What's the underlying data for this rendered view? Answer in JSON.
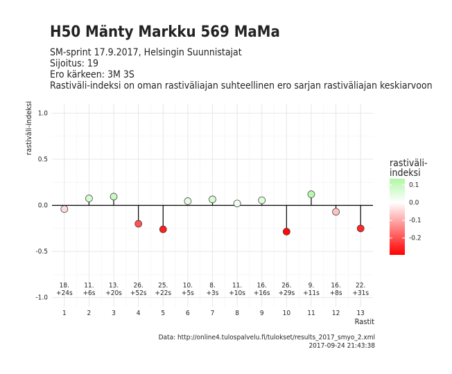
{
  "chart_data": {
    "type": "lollipop",
    "title": "H50 Mänty Markku 569 MaMa",
    "subtitle": [
      "SM-sprint 17.9.2017, Helsingin Suunnistajat",
      "Sijoitus: 19",
      "Ero kärkeen: 3M 3S",
      "Rastiväli-indeksi on oman rastiväliajan suhteellinen ero sarjan rastiväliajan keskiarvoon"
    ],
    "x_label": "Rastit",
    "y_label": "rastiväli-indeksi",
    "x": [
      1,
      2,
      3,
      4,
      5,
      6,
      7,
      8,
      9,
      10,
      11,
      12,
      13
    ],
    "values": [
      -0.04,
      0.075,
      0.095,
      -0.2,
      -0.26,
      0.045,
      0.065,
      0.02,
      0.055,
      -0.285,
      0.12,
      -0.07,
      -0.25
    ],
    "ranks": [
      "18.",
      "11.",
      "13.",
      "26.",
      "25.",
      "10.",
      "8.",
      "11.",
      "16.",
      "26.",
      "9.",
      "16.",
      "22."
    ],
    "splits": [
      "+24s",
      "+6s",
      "+20s",
      "+52s",
      "+22s",
      "+5s",
      "+3s",
      "+10s",
      "+16s",
      "+29s",
      "+11s",
      "+8s",
      "+31s"
    ],
    "xlim": [
      0.5,
      13.5
    ],
    "xticks": [
      1,
      2,
      3,
      4,
      5,
      6,
      7,
      8,
      9,
      10,
      11,
      12,
      13
    ],
    "ylim": [
      -1.1,
      1.1
    ],
    "yticks": [
      {
        "value": -1,
        "label": "-1.0"
      },
      -0.5,
      {
        "value": 0,
        "label": "0.0"
      },
      0.5,
      {
        "value": 1,
        "label": "1.0"
      }
    ],
    "grid": true,
    "legend_title": [
      "rastiväli-",
      "indeksi"
    ],
    "color_lim": [
      -0.295,
      0.135
    ],
    "color_midpoint": 0,
    "color_ticks": [
      {
        "value": 0.1,
        "label": "0.1"
      },
      {
        "value": 0,
        "label": "0.0"
      },
      {
        "value": -0.1,
        "label": "-0.1"
      },
      {
        "value": -0.2,
        "label": "-0.2"
      }
    ],
    "colors": {
      "low": "#ff0000",
      "mid": "#ffffff",
      "high": "#b0f7a6"
    },
    "caption": [
      "Data: http://online4.tulospalvelu.fi/tulokset/results_2017_smyo_2.xml",
      "2017-09-24 21:43:38"
    ]
  }
}
